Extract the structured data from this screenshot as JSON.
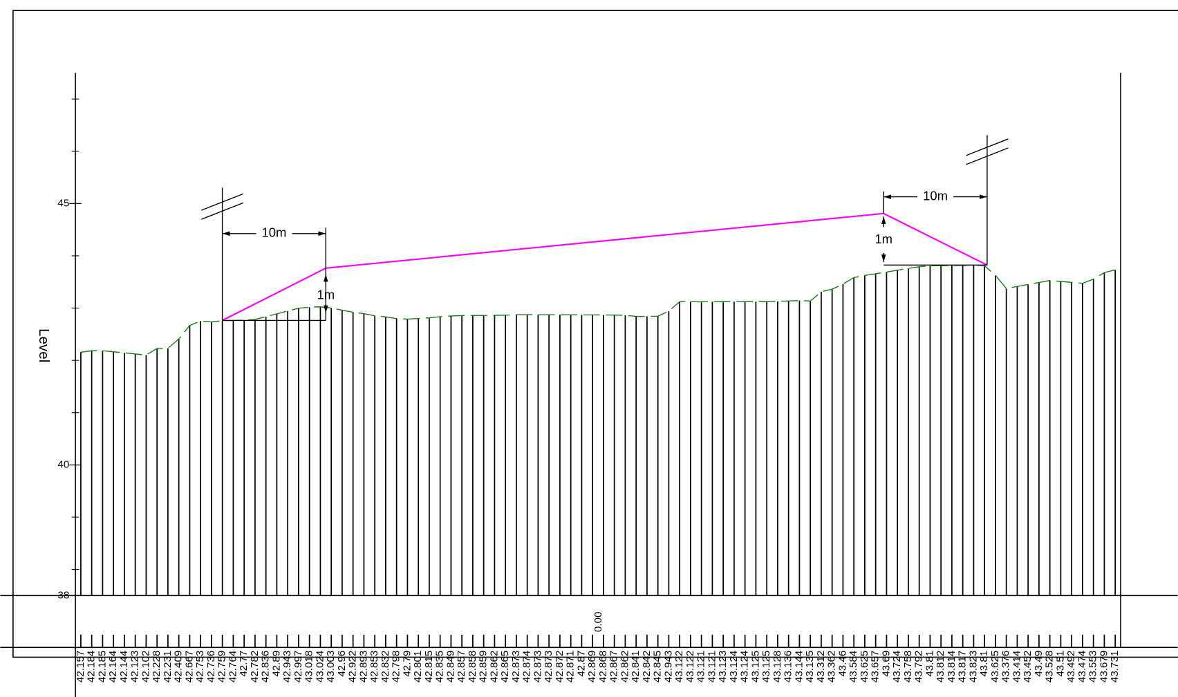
{
  "chart_data": {
    "type": "profile",
    "y_label": "Level",
    "ylim": [
      37.5,
      47.5
    ],
    "yticks": [
      {
        "value": 37.5,
        "label": "38"
      },
      40,
      45
    ],
    "yminorticks": [
      38,
      39,
      41,
      42,
      43,
      44,
      46,
      47
    ],
    "xlim": [
      0,
      101
    ],
    "ground": {
      "color": "#1a7a1a",
      "values": [
        42.157,
        42.184,
        42.185,
        42.164,
        42.144,
        42.123,
        42.102,
        42.228,
        42.231,
        42.409,
        42.667,
        42.753,
        42.736,
        42.759,
        42.764,
        42.77,
        42.782,
        42.836,
        42.89,
        42.943,
        42.997,
        43.018,
        43.024,
        43.003,
        42.96,
        42.922,
        42.893,
        42.853,
        42.832,
        42.798,
        42.79,
        42.801,
        42.815,
        42.835,
        42.849,
        42.857,
        42.858,
        42.859,
        42.862,
        42.865,
        42.873,
        42.874,
        42.873,
        42.873,
        42.872,
        42.871,
        42.87,
        42.869,
        42.868,
        42.867,
        42.862,
        42.841,
        42.842,
        42.845,
        42.943,
        43.122,
        43.122,
        43.121,
        43.121,
        43.123,
        43.124,
        43.124,
        43.125,
        43.125,
        43.128,
        43.136,
        43.144,
        43.135,
        43.312,
        43.362,
        43.46,
        43.584,
        43.625,
        43.657,
        43.69,
        43.724,
        43.758,
        43.792,
        43.81,
        43.812,
        43.814,
        43.817,
        43.823,
        43.81,
        43.625,
        43.376,
        43.414,
        43.452,
        43.49,
        43.528,
        43.51,
        43.492,
        43.474,
        43.553,
        43.679,
        43.731
      ]
    },
    "design": {
      "color": "#ff00ff",
      "x": [
        14.2,
        24.2,
        78.1,
        88.1
      ],
      "values": [
        42.764,
        43.764,
        44.81,
        43.823
      ]
    },
    "annotations": {
      "left_width": "10m",
      "left_rise": "1m",
      "right_width": "10m",
      "right_rise": "1m"
    },
    "offset_label": "0.00"
  }
}
